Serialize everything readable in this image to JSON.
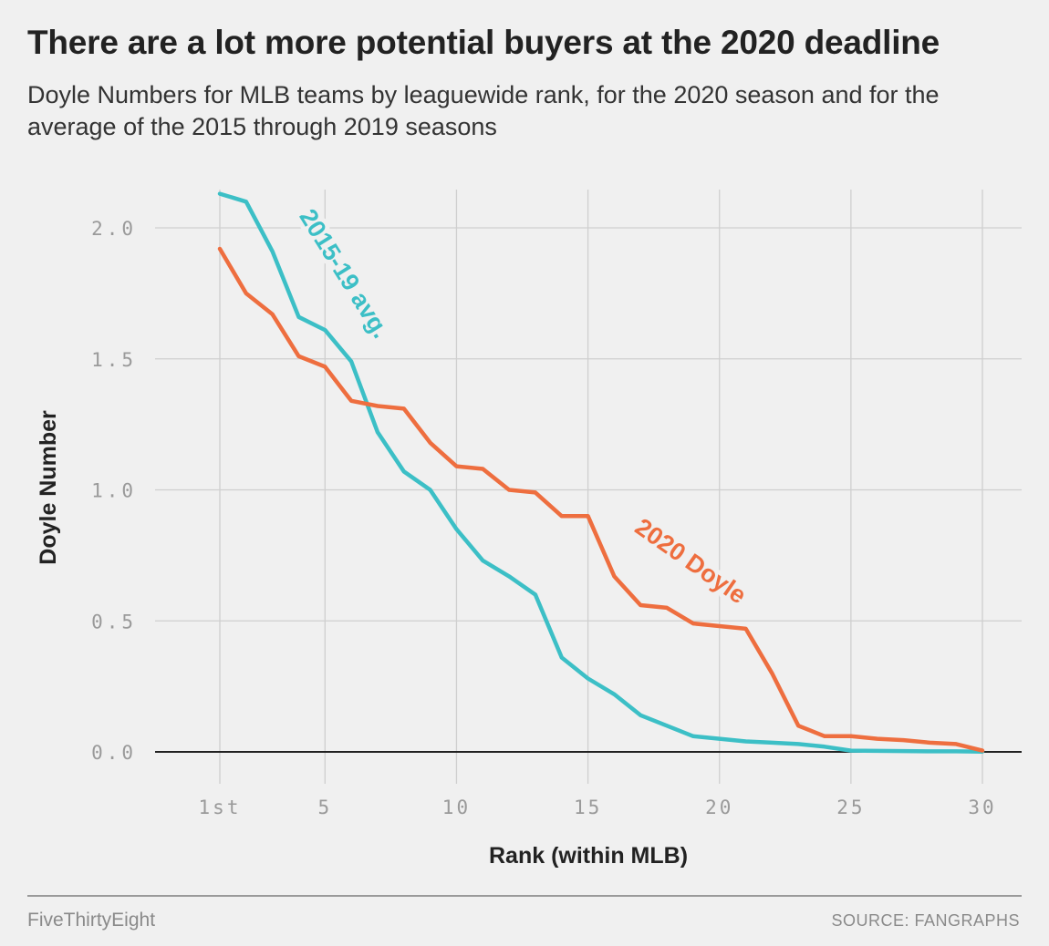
{
  "header": {
    "title": "There are a lot more potential buyers at the 2020 deadline",
    "subtitle": "Doyle Numbers for MLB teams by leaguewide rank, for the 2020 season and for the average of the 2015 through 2019 seasons"
  },
  "footer": {
    "brand": "FiveThirtyEight",
    "source": "SOURCE: FANGRAPHS"
  },
  "colors": {
    "avg_series": "#3cbfc6",
    "season_series": "#ee6e3f",
    "grid": "#cfcfcf",
    "zero_line": "#222222"
  },
  "chart_data": {
    "type": "line",
    "xlabel": "Rank (within MLB)",
    "ylabel": "Doyle Number",
    "xlim": [
      1,
      30
    ],
    "ylim": [
      0,
      2.0
    ],
    "x_ticks": [
      {
        "value": 1,
        "label": "1st"
      },
      {
        "value": 5,
        "label": "5"
      },
      {
        "value": 10,
        "label": "10"
      },
      {
        "value": 15,
        "label": "15"
      },
      {
        "value": 20,
        "label": "20"
      },
      {
        "value": 25,
        "label": "25"
      },
      {
        "value": 30,
        "label": "30"
      }
    ],
    "y_ticks": [
      {
        "value": 0,
        "label": "0.0"
      },
      {
        "value": 0.5,
        "label": "0.5"
      },
      {
        "value": 1.0,
        "label": "1.0"
      },
      {
        "value": 1.5,
        "label": "1.5"
      },
      {
        "value": 2.0,
        "label": "2.0"
      }
    ],
    "x": [
      1,
      2,
      3,
      4,
      5,
      6,
      7,
      8,
      9,
      10,
      11,
      12,
      13,
      14,
      15,
      16,
      17,
      18,
      19,
      20,
      21,
      22,
      23,
      24,
      25,
      26,
      27,
      28,
      29,
      30
    ],
    "series": [
      {
        "name": "2015-19 avg.",
        "color": "#3cbfc6",
        "values": [
          2.13,
          2.1,
          1.91,
          1.66,
          1.61,
          1.49,
          1.22,
          1.07,
          1.0,
          0.85,
          0.73,
          0.67,
          0.6,
          0.36,
          0.28,
          0.22,
          0.14,
          0.1,
          0.06,
          0.05,
          0.04,
          0.035,
          0.03,
          0.02,
          0.005,
          0.004,
          0.003,
          0.002,
          0.002,
          0.001
        ]
      },
      {
        "name": "2020 Doyle",
        "color": "#ee6e3f",
        "values": [
          1.92,
          1.75,
          1.67,
          1.51,
          1.47,
          1.34,
          1.32,
          1.31,
          1.18,
          1.09,
          1.08,
          1.0,
          0.99,
          0.9,
          0.9,
          0.67,
          0.56,
          0.55,
          0.49,
          0.48,
          0.47,
          0.3,
          0.1,
          0.06,
          0.06,
          0.05,
          0.045,
          0.035,
          0.03,
          0.005
        ]
      }
    ],
    "grid": true,
    "legend": "direct labels on lines"
  }
}
